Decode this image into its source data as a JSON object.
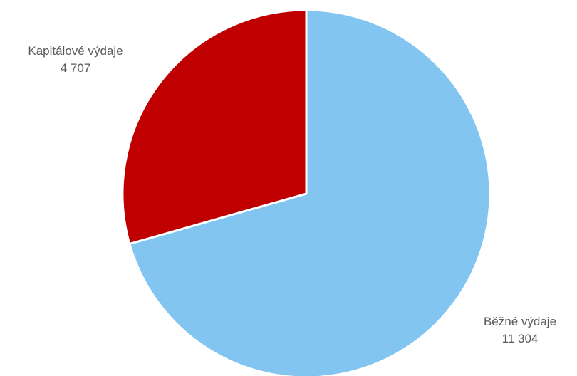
{
  "chart_data": {
    "type": "pie",
    "slices": [
      {
        "label": "Běžné výdaje",
        "value": 11304,
        "value_text": "11 304",
        "color": "#82C5F0"
      },
      {
        "label": "Kapitálové výdaje",
        "value": 4707,
        "value_text": "4 707",
        "color": "#C00000"
      }
    ],
    "start_angle": "12 o'clock",
    "direction": "clockwise",
    "legend": "none",
    "data_labels": "outside"
  }
}
